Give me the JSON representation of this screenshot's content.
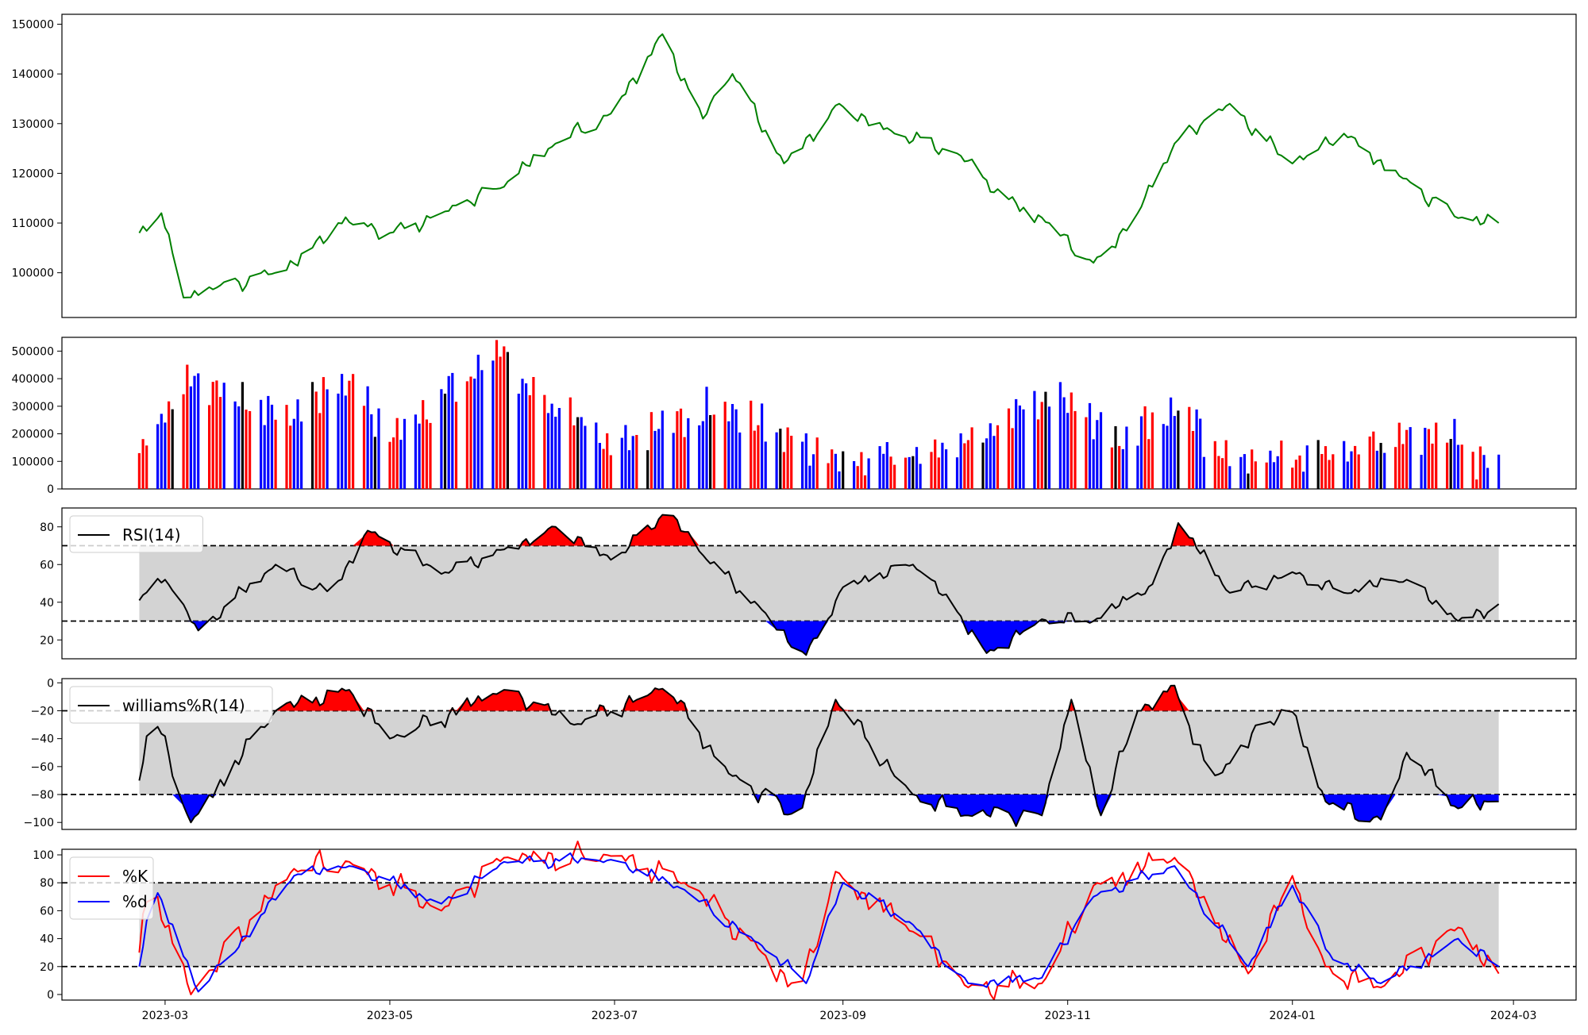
{
  "chart_data": [
    {
      "panel": "price",
      "type": "line",
      "ylim": [
        91000,
        152000
      ],
      "yticks": [
        100000,
        110000,
        120000,
        130000,
        140000,
        150000
      ],
      "ytick_labels": [
        "100000",
        "110000",
        "120000",
        "130000",
        "140000",
        "150000"
      ],
      "color": "#008000",
      "series": [
        {
          "x": [
            "2023-02-22",
            "2023-02-28",
            "2023-03-03",
            "2023-03-06",
            "2023-03-15",
            "2023-03-31",
            "2023-04-10",
            "2023-04-17",
            "2023-04-24",
            "2023-05-01",
            "2023-05-15",
            "2023-05-31",
            "2023-06-15",
            "2023-06-30",
            "2023-07-14",
            "2023-07-25",
            "2023-08-02",
            "2023-08-16",
            "2023-08-31",
            "2023-09-15",
            "2023-10-02",
            "2023-10-15",
            "2023-10-27",
            "2023-11-08",
            "2023-11-20",
            "2023-11-30",
            "2023-12-15",
            "2023-12-31",
            "2024-01-15",
            "2024-01-31",
            "2024-02-15",
            "2024-02-26"
          ],
          "values": [
            108000,
            112000,
            104000,
            95000,
            97000,
            100000,
            105000,
            110000,
            110000,
            108000,
            112000,
            117000,
            126000,
            132000,
            148000,
            131000,
            140000,
            122000,
            134000,
            128000,
            124000,
            115000,
            110000,
            102000,
            112000,
            126000,
            134000,
            122000,
            128000,
            119000,
            111000,
            110000
          ]
        }
      ]
    },
    {
      "panel": "volume",
      "type": "bar",
      "ylim": [
        0,
        550000
      ],
      "yticks": [
        0,
        100000,
        200000,
        300000,
        400000,
        500000
      ],
      "ytick_labels": [
        "0",
        "100000",
        "200000",
        "300000",
        "400000",
        "500000"
      ],
      "colors": {
        "up": "#ff0000",
        "down": "#0000ff",
        "flat": "#000000"
      },
      "series": [
        {
          "x": [
            "2023-02-22",
            "2023-03-01",
            "2023-03-08",
            "2023-04-03",
            "2023-04-20",
            "2023-05-01",
            "2023-06-01",
            "2023-06-05",
            "2023-07-01",
            "2023-07-15",
            "2023-08-01",
            "2023-08-15",
            "2023-09-01",
            "2023-10-01",
            "2023-10-29",
            "2023-11-15",
            "2023-12-01",
            "2023-12-15",
            "2024-01-01",
            "2024-01-15",
            "2024-02-01",
            "2024-02-10",
            "2024-02-26"
          ],
          "values": [
            130000,
            280000,
            410000,
            260000,
            390000,
            190000,
            520000,
            390000,
            150000,
            250000,
            290000,
            190000,
            100000,
            150000,
            350000,
            170000,
            300000,
            110000,
            110000,
            130000,
            200000,
            215000,
            80000
          ]
        }
      ]
    },
    {
      "panel": "rsi",
      "type": "line",
      "legend": [
        "RSI(14)"
      ],
      "ylim": [
        10,
        90
      ],
      "yticks": [
        20,
        40,
        60,
        80
      ],
      "ytick_labels": [
        "20",
        "40",
        "60",
        "80"
      ],
      "bands": [
        30,
        70
      ],
      "series": [
        {
          "name": "RSI(14)",
          "x": [
            "2023-02-22",
            "2023-03-01",
            "2023-03-10",
            "2023-03-31",
            "2023-04-15",
            "2023-04-25",
            "2023-05-15",
            "2023-06-01",
            "2023-06-15",
            "2023-07-01",
            "2023-07-15",
            "2023-07-25",
            "2023-08-10",
            "2023-08-22",
            "2023-09-01",
            "2023-09-20",
            "2023-10-02",
            "2023-10-10",
            "2023-10-25",
            "2023-11-08",
            "2023-11-25",
            "2023-12-01",
            "2023-12-15",
            "2024-01-01",
            "2024-01-15",
            "2024-02-01",
            "2024-02-15",
            "2024-02-26"
          ],
          "values": [
            41,
            52,
            25,
            60,
            45,
            78,
            55,
            68,
            80,
            62,
            88,
            65,
            36,
            12,
            48,
            60,
            35,
            13,
            31,
            30,
            50,
            82,
            45,
            56,
            45,
            52,
            30,
            39
          ]
        }
      ]
    },
    {
      "panel": "williams",
      "type": "line",
      "legend": [
        "williams%R(14)"
      ],
      "ylim": [
        -105,
        3
      ],
      "yticks": [
        0,
        -20,
        -40,
        -60,
        -80,
        -100
      ],
      "ytick_labels": [
        "0",
        "−20",
        "−40",
        "−60",
        "−80",
        "−100"
      ],
      "bands": [
        -80,
        -20
      ],
      "series": [
        {
          "name": "williams%R(14)",
          "x": [
            "2023-02-22",
            "2023-02-25",
            "2023-03-08",
            "2023-03-31",
            "2023-04-20",
            "2023-05-01",
            "2023-06-01",
            "2023-06-20",
            "2023-07-15",
            "2023-08-01",
            "2023-08-20",
            "2023-08-30",
            "2023-09-20",
            "2023-10-05",
            "2023-10-25",
            "2023-11-02",
            "2023-11-10",
            "2023-11-20",
            "2023-11-30",
            "2023-12-10",
            "2023-12-31",
            "2024-01-10",
            "2024-01-25",
            "2024-02-01",
            "2024-02-15",
            "2024-02-26"
          ],
          "values": [
            -70,
            -15,
            -100,
            -20,
            -5,
            -40,
            -5,
            -30,
            -2,
            -65,
            -98,
            -12,
            -80,
            -95,
            -95,
            -12,
            -95,
            -20,
            -2,
            -70,
            -15,
            -85,
            -98,
            -50,
            -90,
            -85
          ]
        }
      ]
    },
    {
      "panel": "stochastic",
      "type": "line",
      "legend": [
        "%K",
        "%d"
      ],
      "ylim": [
        -4,
        104
      ],
      "yticks": [
        0,
        20,
        40,
        60,
        80,
        100
      ],
      "ytick_labels": [
        "0",
        "20",
        "40",
        "60",
        "80",
        "100"
      ],
      "bands": [
        20,
        80
      ],
      "xlim": [
        "2023-02-01",
        "2024-03-18"
      ],
      "xticks": [
        "2023-03-01",
        "2023-05-01",
        "2023-07-01",
        "2023-09-01",
        "2023-11-01",
        "2024-01-01",
        "2024-03-01"
      ],
      "xtick_labels": [
        "2023-03",
        "2023-05",
        "2023-07",
        "2023-09",
        "2023-11",
        "2024-01",
        "2024-03"
      ],
      "series": [
        {
          "name": "%K",
          "color": "#ff0000",
          "x": [
            "2023-02-22",
            "2023-02-25",
            "2023-03-08",
            "2023-04-05",
            "2023-04-20",
            "2023-05-15",
            "2023-06-01",
            "2023-07-01",
            "2023-07-20",
            "2023-08-10",
            "2023-08-20",
            "2023-08-30",
            "2023-09-20",
            "2023-10-05",
            "2023-10-25",
            "2023-11-08",
            "2023-11-30",
            "2023-12-20",
            "2024-01-01",
            "2024-01-10",
            "2024-01-25",
            "2024-02-15",
            "2024-02-26"
          ],
          "values": [
            30,
            85,
            0,
            90,
            95,
            60,
            98,
            100,
            80,
            30,
            2,
            88,
            45,
            5,
            8,
            78,
            98,
            15,
            85,
            20,
            5,
            48,
            15
          ]
        },
        {
          "name": "%d",
          "color": "#0000ff",
          "x": [
            "2023-02-22",
            "2023-02-26",
            "2023-03-10",
            "2023-04-05",
            "2023-04-20",
            "2023-05-15",
            "2023-06-01",
            "2023-07-01",
            "2023-07-20",
            "2023-08-10",
            "2023-08-22",
            "2023-09-01",
            "2023-09-20",
            "2023-10-05",
            "2023-10-25",
            "2023-11-08",
            "2023-11-30",
            "2023-12-20",
            "2024-01-01",
            "2024-01-12",
            "2024-01-25",
            "2024-02-15",
            "2024-02-26"
          ],
          "values": [
            20,
            80,
            2,
            85,
            92,
            65,
            95,
            96,
            75,
            35,
            8,
            80,
            50,
            8,
            12,
            70,
            92,
            20,
            78,
            25,
            8,
            40,
            20
          ]
        }
      ]
    }
  ]
}
